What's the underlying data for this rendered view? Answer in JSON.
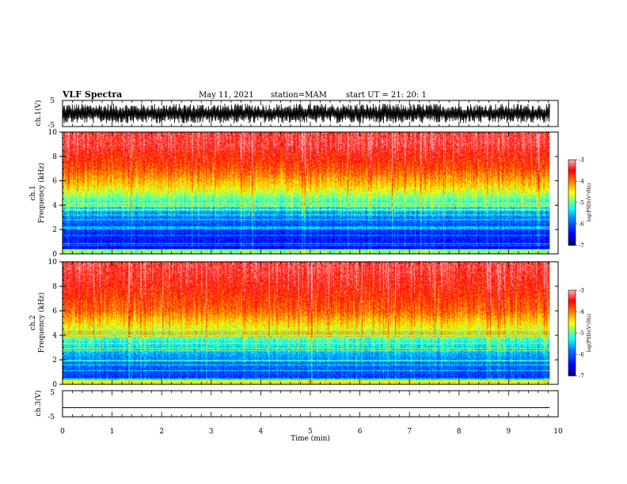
{
  "header": {
    "title": "VLF Spectra",
    "date": "May 11, 2021",
    "station": "station=MAM",
    "start": "start UT =  21: 20: 1"
  },
  "chart_data": [
    {
      "type": "line",
      "ylabel": "ch.1(V)",
      "ylim": [
        -5,
        5
      ],
      "yticks": [
        "5",
        "-5"
      ],
      "xlim": [
        0,
        10
      ],
      "description_values": "dense oscillating waveform roughly between -4 and +4 V"
    },
    {
      "type": "heatmap",
      "ylabel_line1": "ch.1",
      "ylabel_line2": "Frequency (kHz)",
      "ylim": [
        0,
        10
      ],
      "yticks": [
        "0",
        "2",
        "4",
        "6",
        "8",
        "10"
      ],
      "xlim": [
        0,
        10
      ],
      "colorbar": {
        "label": "log(PSD)(V²/Hz)",
        "range": [
          -7,
          -3
        ],
        "ticks": [
          "-3",
          "-4",
          "-5",
          "-6",
          "-7"
        ]
      },
      "power_by_frequency_kHz": [
        {
          "f": 0.5,
          "log_psd": -6.5
        },
        {
          "f": 2,
          "log_psd": -6.2
        },
        {
          "f": 3.5,
          "log_psd": -5.6
        },
        {
          "f": 4.5,
          "log_psd": -5.0
        },
        {
          "f": 5.5,
          "log_psd": -4.4
        },
        {
          "f": 7,
          "log_psd": -3.8
        },
        {
          "f": 9,
          "log_psd": -3.3
        }
      ]
    },
    {
      "type": "heatmap",
      "ylabel_line1": "ch.2",
      "ylabel_line2": "Frequency (kHz)",
      "ylim": [
        0,
        10
      ],
      "yticks": [
        "0",
        "2",
        "4",
        "6",
        "8",
        "10"
      ],
      "xlim": [
        0,
        10
      ],
      "colorbar": {
        "label": "log(PSD)(V²/Hz)",
        "range": [
          -7,
          -3
        ],
        "ticks": [
          "-3",
          "-4",
          "-5",
          "-6",
          "-7"
        ]
      },
      "power_by_frequency_kHz": [
        {
          "f": 0.5,
          "log_psd": -6.2
        },
        {
          "f": 2,
          "log_psd": -5.8
        },
        {
          "f": 3.5,
          "log_psd": -5.2
        },
        {
          "f": 4.5,
          "log_psd": -4.6
        },
        {
          "f": 6,
          "log_psd": -3.9
        },
        {
          "f": 8,
          "log_psd": -3.5
        },
        {
          "f": 9.5,
          "log_psd": -3.3
        }
      ]
    },
    {
      "type": "line",
      "ylabel": "ch.3(V)",
      "ylim": [
        -5,
        5
      ],
      "yticks": [
        "5",
        "-5"
      ],
      "xlim": [
        0,
        10
      ],
      "values_constant": -1.5
    }
  ],
  "x_axis": {
    "label": "Time (min)",
    "ticks": [
      "0",
      "1",
      "2",
      "3",
      "4",
      "5",
      "6",
      "7",
      "8",
      "9",
      "10"
    ],
    "range": [
      0,
      10
    ],
    "data_end": 9.83
  },
  "colors": {
    "colormap": [
      "#00007f",
      "#0000ff",
      "#007fff",
      "#00ffff",
      "#7fff7f",
      "#ffff00",
      "#ff7f00",
      "#ff0000",
      "#ffaaaa"
    ]
  }
}
